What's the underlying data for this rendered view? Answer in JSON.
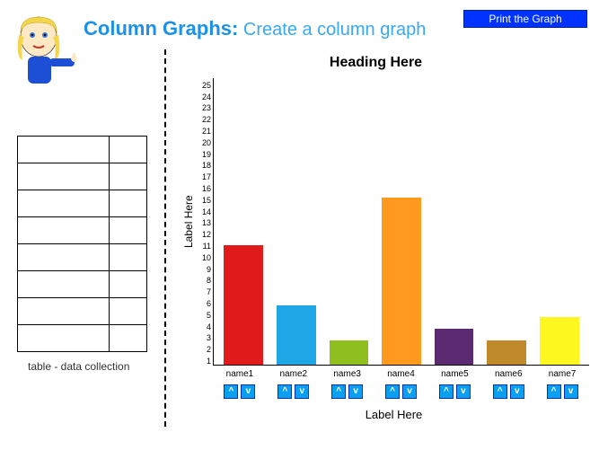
{
  "header": {
    "title_strong": "Column Graphs:",
    "title_sub": "Create a column graph"
  },
  "print_button_label": "Print the Graph",
  "table": {
    "caption": "table - data collection",
    "rows": 8,
    "cells": [
      [
        "",
        ""
      ],
      [
        "",
        ""
      ],
      [
        "",
        ""
      ],
      [
        "",
        ""
      ],
      [
        "",
        ""
      ],
      [
        "",
        ""
      ],
      [
        "",
        ""
      ],
      [
        "",
        ""
      ]
    ]
  },
  "chart": {
    "type": "bar",
    "title": "Heading Here",
    "title_fontsize": 16,
    "xlabel": "Label Here",
    "ylabel": "Label Here",
    "label_fontsize": 12,
    "ylim": [
      1,
      25
    ],
    "ytick_step": 1,
    "background_color": "#ffffff",
    "axis_color": "#000000",
    "bar_width_ratio": 0.8,
    "categories": [
      "name1",
      "name2",
      "name3",
      "name4",
      "name5",
      "name6",
      "name7"
    ],
    "values": [
      11,
      6,
      3,
      15,
      4,
      3,
      5
    ],
    "bar_colors": [
      "#e11b1b",
      "#1ea6e6",
      "#8fbf1f",
      "#ff9a1f",
      "#5b2a70",
      "#c08a2a",
      "#fff71f"
    ],
    "controls": {
      "up_glyph": "^",
      "down_glyph": "v",
      "button_color": "#0aa0f0"
    }
  }
}
